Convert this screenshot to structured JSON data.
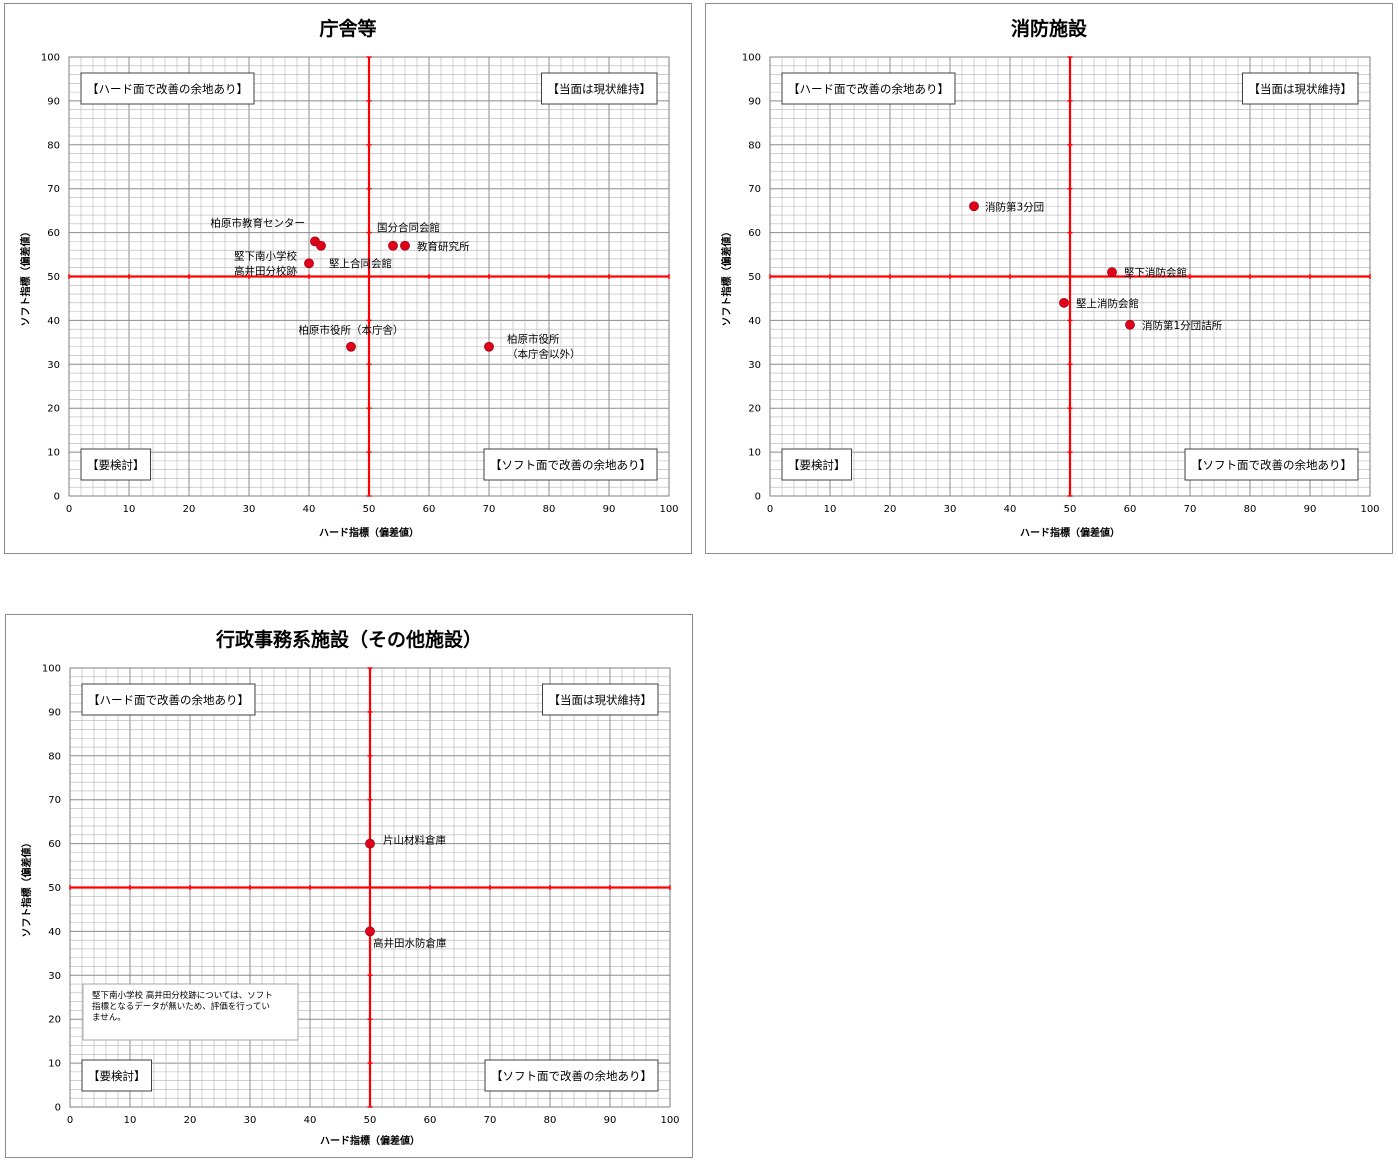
{
  "chart_data": [
    {
      "type": "scatter",
      "title": "庁舎等",
      "xlabel": "ハード指標（偏差値）",
      "ylabel": "ソフト指標（偏差値）",
      "xlim": [
        0,
        100
      ],
      "ylim": [
        0,
        100
      ],
      "x_ticks": [
        "0",
        "10",
        "20",
        "30",
        "40",
        "50",
        "60",
        "70",
        "80",
        "90",
        "100"
      ],
      "y_ticks": [
        "0",
        "10",
        "20",
        "30",
        "40",
        "50",
        "60",
        "70",
        "80",
        "90",
        "100"
      ],
      "grid": true,
      "reference_lines": {
        "x": 50,
        "y": 50
      },
      "quadrant_labels": {
        "top_left": "【ハード面で改善の余地あり】",
        "top_right": "【当面は現状維持】",
        "bottom_left": "【要検討】",
        "bottom_right": "【ソフト面で改善の余地あり】"
      },
      "points": [
        {
          "label": [
            "柏原市教育センター"
          ],
          "x": 41,
          "y": 58
        },
        {
          "label": [
            "堅上合同会館"
          ],
          "x": 42,
          "y": 57
        },
        {
          "label": [
            "国分合同会館"
          ],
          "x": 54,
          "y": 57
        },
        {
          "label": [
            "教育研究所"
          ],
          "x": 56,
          "y": 57
        },
        {
          "label": [
            "堅下南小学校",
            "高井田分校跡"
          ],
          "x": 40,
          "y": 53
        },
        {
          "label": [
            "柏原市役所（本庁舎）"
          ],
          "x": 47,
          "y": 34
        },
        {
          "label": [
            "柏原市役所",
            "（本庁舎以外）"
          ],
          "x": 70,
          "y": 34
        }
      ],
      "note": []
    },
    {
      "type": "scatter",
      "title": "消防施設",
      "xlabel": "ハード指標（偏差値）",
      "ylabel": "ソフト指標（偏差値）",
      "xlim": [
        0,
        100
      ],
      "ylim": [
        0,
        100
      ],
      "x_ticks": [
        "0",
        "10",
        "20",
        "30",
        "40",
        "50",
        "60",
        "70",
        "80",
        "90",
        "100"
      ],
      "y_ticks": [
        "0",
        "10",
        "20",
        "30",
        "40",
        "50",
        "60",
        "70",
        "80",
        "90",
        "100"
      ],
      "grid": true,
      "reference_lines": {
        "x": 50,
        "y": 50
      },
      "quadrant_labels": {
        "top_left": "【ハード面で改善の余地あり】",
        "top_right": "【当面は現状維持】",
        "bottom_left": "【要検討】",
        "bottom_right": "【ソフト面で改善の余地あり】"
      },
      "points": [
        {
          "label": [
            "消防第3分団"
          ],
          "x": 34,
          "y": 66
        },
        {
          "label": [
            "堅下消防会館"
          ],
          "x": 57,
          "y": 51
        },
        {
          "label": [
            "堅上消防会館"
          ],
          "x": 49,
          "y": 44
        },
        {
          "label": [
            "消防第1分団詰所"
          ],
          "x": 60,
          "y": 39
        }
      ],
      "note": []
    },
    {
      "type": "scatter",
      "title": "行政事務系施設（その他施設）",
      "xlabel": "ハード指標（偏差値）",
      "ylabel": "ソフト指標（偏差値）",
      "xlim": [
        0,
        100
      ],
      "ylim": [
        0,
        100
      ],
      "x_ticks": [
        "0",
        "10",
        "20",
        "30",
        "40",
        "50",
        "60",
        "70",
        "80",
        "90",
        "100"
      ],
      "y_ticks": [
        "0",
        "10",
        "20",
        "30",
        "40",
        "50",
        "60",
        "70",
        "80",
        "90",
        "100"
      ],
      "grid": true,
      "reference_lines": {
        "x": 50,
        "y": 50
      },
      "quadrant_labels": {
        "top_left": "【ハード面で改善の余地あり】",
        "top_right": "【当面は現状維持】",
        "bottom_left": "【要検討】",
        "bottom_right": "【ソフト面で改善の余地あり】"
      },
      "points": [
        {
          "label": [
            "片山材料倉庫"
          ],
          "x": 50,
          "y": 60
        },
        {
          "label": [
            "高井田水防倉庫"
          ],
          "x": 50,
          "y": 40
        }
      ],
      "note": [
        "堅下南小学校 高井田分校跡については、ソフト",
        "指標となるデータが無いため、評価を行ってい",
        "ません。"
      ]
    }
  ],
  "colors": {
    "point": "#e0001b",
    "reference_line": "#ff0000",
    "grid": "#a6a6a6",
    "frame": "#8c8c8c"
  }
}
